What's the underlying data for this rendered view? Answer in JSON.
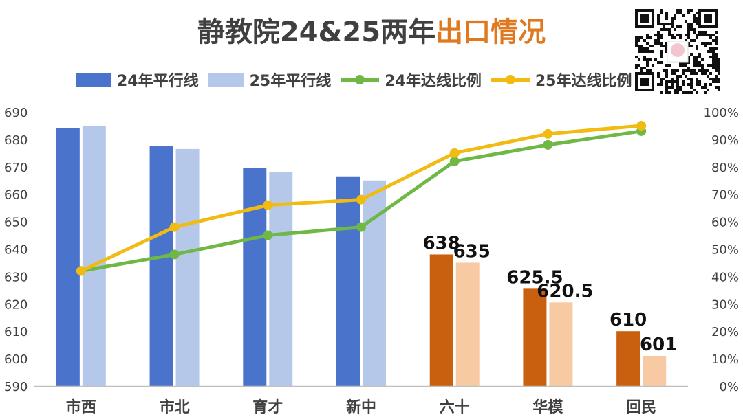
{
  "title": {
    "part1": "静教院24&25两年",
    "part2": "出口情况",
    "highlight_color": "#e0781f"
  },
  "legend": [
    {
      "label": "24年平行线",
      "kind": "bar",
      "color": "#4a74cc"
    },
    {
      "label": "25年平行线",
      "kind": "bar",
      "color": "#b6c8ea"
    },
    {
      "label": "24年达线比例",
      "kind": "line",
      "color": "#70b845"
    },
    {
      "label": "25年达线比例",
      "kind": "line",
      "color": "#f2bb12"
    }
  ],
  "qr_code": {
    "icon": "qr-code-icon"
  },
  "chart_data": {
    "type": "bar",
    "categories": [
      "市西",
      "市北",
      "育才",
      "新中",
      "六十",
      "华模",
      "回民"
    ],
    "series": [
      {
        "name": "24年平行线",
        "type": "bar",
        "axis": "left",
        "values": [
          684,
          677.5,
          669.5,
          666.5,
          638,
          625.5,
          610
        ],
        "colors": [
          "#4a74cc",
          "#4a74cc",
          "#4a74cc",
          "#4a74cc",
          "#c8600f",
          "#c8600f",
          "#c8600f"
        ]
      },
      {
        "name": "25年平行线",
        "type": "bar",
        "axis": "left",
        "values": [
          685,
          676.5,
          668,
          665,
          635,
          620.5,
          601
        ],
        "colors": [
          "#b6c8ea",
          "#b6c8ea",
          "#b6c8ea",
          "#b6c8ea",
          "#f7caa4",
          "#f7caa4",
          "#f7caa4"
        ]
      },
      {
        "name": "24年达线比例",
        "type": "line",
        "axis": "right",
        "color": "#70b845",
        "values": [
          42,
          48,
          55,
          58,
          82,
          88,
          93
        ]
      },
      {
        "name": "25年达线比例",
        "type": "line",
        "axis": "right",
        "color": "#f2bb12",
        "values": [
          42,
          58,
          66,
          68,
          85,
          92,
          95
        ]
      }
    ],
    "data_labels": [
      {
        "series": "24年平行线",
        "category": "六十",
        "text": "638"
      },
      {
        "series": "25年平行线",
        "category": "六十",
        "text": "635"
      },
      {
        "series": "24年平行线",
        "category": "华模",
        "text": "625.5"
      },
      {
        "series": "25年平行线",
        "category": "华模",
        "text": "620.5"
      },
      {
        "series": "24年平行线",
        "category": "回民",
        "text": "610"
      },
      {
        "series": "25年平行线",
        "category": "回民",
        "text": "601"
      }
    ],
    "y_left": {
      "min": 590,
      "max": 690,
      "step": 10,
      "ticks": [
        "590",
        "600",
        "610",
        "620",
        "630",
        "640",
        "650",
        "660",
        "670",
        "680",
        "690"
      ]
    },
    "y_right": {
      "min": 0,
      "max": 100,
      "step": 10,
      "ticks": [
        "0%",
        "10%",
        "20%",
        "30%",
        "40%",
        "50%",
        "60%",
        "70%",
        "80%",
        "90%",
        "100%"
      ]
    },
    "xlabel": "",
    "ylabel": "",
    "grid": false,
    "legend_position": "top"
  }
}
